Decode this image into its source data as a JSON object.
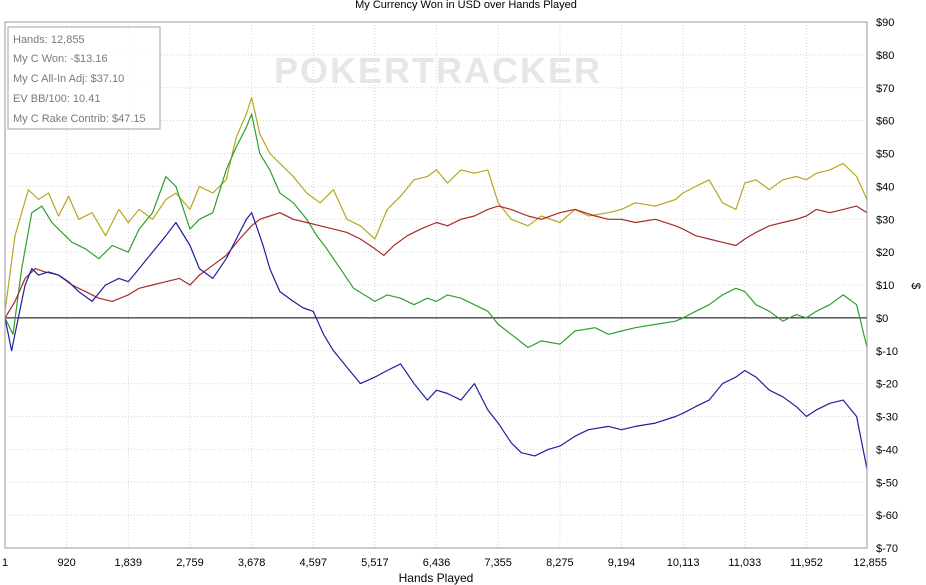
{
  "chart_data": {
    "type": "line",
    "title": "My Currency Won in USD over Hands Played",
    "xlabel": "Hands Played",
    "ylabel": "$",
    "xlim": [
      1,
      12855
    ],
    "ylim": [
      -70,
      90
    ],
    "grid": true,
    "x_ticks": [
      1,
      920,
      1839,
      2759,
      3678,
      4597,
      5517,
      6436,
      7355,
      8275,
      9194,
      10113,
      11033,
      11952,
      12855
    ],
    "x_tick_labels": [
      "1",
      "920",
      "1,839",
      "2,759",
      "3,678",
      "4,597",
      "5,517",
      "6,436",
      "7,355",
      "8,275",
      "9,194",
      "10,113",
      "11,033",
      "11,952",
      "12,855"
    ],
    "y_ticks": [
      90,
      80,
      70,
      60,
      50,
      40,
      30,
      20,
      10,
      0,
      -10,
      -20,
      -30,
      -40,
      -50,
      -60,
      -70
    ],
    "y_tick_labels": [
      "$90",
      "$80",
      "$70",
      "$60",
      "$50",
      "$40",
      "$30",
      "$20",
      "$10",
      "$0",
      "$-10",
      "$-20",
      "$-30",
      "$-40",
      "$-50",
      "$-60",
      "$-70"
    ],
    "watermark": "POKERTRACKER",
    "stats_box": [
      "Hands: 12,855",
      "My C Won: -$13.16",
      "My C All-In Adj: $37.10",
      "EV BB/100: 10.41",
      "My C Rake Contrib: $47.15"
    ],
    "series": [
      {
        "color": "#b5a81c",
        "x": [
          1,
          150,
          350,
          500,
          650,
          800,
          950,
          1100,
          1300,
          1500,
          1700,
          1839,
          2000,
          2200,
          2400,
          2550,
          2759,
          2900,
          3100,
          3300,
          3450,
          3600,
          3678,
          3800,
          3950,
          4100,
          4300,
          4500,
          4700,
          4900,
          5100,
          5300,
          5517,
          5700,
          5900,
          6100,
          6300,
          6436,
          6600,
          6800,
          7000,
          7200,
          7355,
          7550,
          7800,
          8000,
          8275,
          8500,
          8700,
          9000,
          9194,
          9400,
          9700,
          10000,
          10113,
          10300,
          10500,
          10700,
          10900,
          11033,
          11200,
          11400,
          11600,
          11800,
          11952,
          12100,
          12300,
          12500,
          12700,
          12855
        ],
        "values": [
          2,
          25,
          39,
          36,
          38,
          31,
          37,
          30,
          32,
          25,
          33,
          29,
          33,
          30,
          36,
          38,
          33,
          40,
          38,
          42,
          55,
          62,
          67,
          56,
          50,
          47,
          43,
          38,
          35,
          39,
          30,
          28,
          24,
          33,
          37,
          42,
          43,
          45,
          41,
          45,
          44,
          45,
          35,
          30,
          28,
          31,
          29,
          33,
          31,
          32,
          33,
          35,
          34,
          36,
          38,
          40,
          42,
          35,
          33,
          41,
          42,
          39,
          42,
          43,
          42,
          44,
          45,
          47,
          43,
          36
        ]
      },
      {
        "color": "#2ca02c",
        "x": [
          1,
          120,
          250,
          400,
          550,
          700,
          850,
          1000,
          1200,
          1400,
          1600,
          1839,
          2000,
          2200,
          2400,
          2550,
          2759,
          2900,
          3100,
          3300,
          3450,
          3600,
          3678,
          3800,
          3950,
          4100,
          4300,
          4500,
          4650,
          4800,
          5000,
          5200,
          5517,
          5700,
          5900,
          6100,
          6300,
          6436,
          6600,
          6800,
          7000,
          7200,
          7355,
          7550,
          7800,
          8000,
          8275,
          8500,
          8800,
          9000,
          9194,
          9400,
          9700,
          10000,
          10113,
          10300,
          10500,
          10700,
          10900,
          11033,
          11200,
          11400,
          11600,
          11800,
          11952,
          12100,
          12300,
          12500,
          12700,
          12855
        ],
        "values": [
          0,
          -5,
          15,
          32,
          34,
          29,
          26,
          23,
          21,
          18,
          22,
          20,
          27,
          32,
          43,
          40,
          27,
          30,
          32,
          45,
          52,
          58,
          62,
          50,
          45,
          38,
          35,
          30,
          25,
          21,
          15,
          9,
          5,
          7,
          6,
          4,
          6,
          5,
          7,
          6,
          4,
          2,
          -2,
          -5,
          -9,
          -7,
          -8,
          -4,
          -3,
          -5,
          -4,
          -3,
          -2,
          -1,
          0,
          2,
          4,
          7,
          9,
          8,
          4,
          2,
          -1,
          1,
          0,
          2,
          4,
          7,
          4,
          -9
        ]
      },
      {
        "color": "#a82a2a",
        "x": [
          1,
          150,
          300,
          450,
          600,
          800,
          1000,
          1200,
          1400,
          1600,
          1839,
          2000,
          2200,
          2400,
          2600,
          2759,
          2900,
          3100,
          3300,
          3500,
          3678,
          3800,
          3950,
          4100,
          4300,
          4500,
          4700,
          4900,
          5100,
          5300,
          5517,
          5650,
          5800,
          6000,
          6200,
          6436,
          6600,
          6800,
          7000,
          7200,
          7355,
          7550,
          7800,
          8000,
          8275,
          8500,
          8800,
          9000,
          9194,
          9400,
          9700,
          10000,
          10113,
          10300,
          10500,
          10700,
          10900,
          11033,
          11200,
          11400,
          11600,
          11800,
          11952,
          12100,
          12300,
          12500,
          12700,
          12855
        ],
        "values": [
          0,
          5,
          12,
          15,
          14,
          13,
          10,
          8,
          6,
          5,
          7,
          9,
          10,
          11,
          12,
          10,
          13,
          16,
          19,
          24,
          28,
          30,
          31,
          32,
          30,
          29,
          28,
          27,
          26,
          24,
          21,
          19,
          22,
          25,
          27,
          29,
          28,
          30,
          31,
          33,
          34,
          33,
          31,
          30,
          32,
          33,
          31,
          30,
          30,
          29,
          30,
          28,
          27,
          25,
          24,
          23,
          22,
          24,
          26,
          28,
          29,
          30,
          31,
          33,
          32,
          33,
          34,
          32
        ]
      },
      {
        "color": "#1f1f9f",
        "x": [
          1,
          100,
          200,
          300,
          400,
          500,
          650,
          800,
          950,
          1100,
          1300,
          1500,
          1700,
          1839,
          2000,
          2200,
          2400,
          2550,
          2759,
          2900,
          3100,
          3300,
          3450,
          3600,
          3678,
          3750,
          3850,
          3950,
          4100,
          4300,
          4450,
          4597,
          4750,
          4900,
          5100,
          5300,
          5517,
          5700,
          5900,
          6100,
          6300,
          6436,
          6600,
          6800,
          7000,
          7200,
          7355,
          7550,
          7700,
          7900,
          8100,
          8275,
          8500,
          8700,
          9000,
          9194,
          9400,
          9700,
          10000,
          10113,
          10300,
          10500,
          10700,
          10900,
          11033,
          11200,
          11400,
          11600,
          11800,
          11952,
          12100,
          12300,
          12500,
          12700,
          12855
        ],
        "values": [
          0,
          -10,
          0,
          10,
          15,
          13,
          14,
          13,
          11,
          8,
          5,
          10,
          12,
          11,
          15,
          20,
          25,
          29,
          22,
          15,
          12,
          18,
          24,
          30,
          32,
          28,
          22,
          15,
          8,
          5,
          3,
          2,
          -5,
          -10,
          -15,
          -20,
          -18,
          -16,
          -14,
          -20,
          -25,
          -22,
          -23,
          -25,
          -20,
          -28,
          -32,
          -38,
          -41,
          -42,
          -40,
          -39,
          -36,
          -34,
          -33,
          -34,
          -33,
          -32,
          -30,
          -29,
          -27,
          -25,
          -20,
          -18,
          -16,
          -18,
          -22,
          -24,
          -27,
          -30,
          -28,
          -26,
          -25,
          -30,
          -46
        ]
      }
    ]
  }
}
